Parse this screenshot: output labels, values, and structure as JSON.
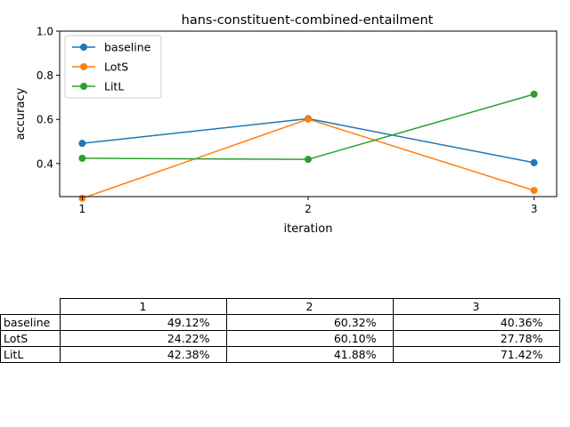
{
  "chart_data": {
    "type": "line",
    "title": "hans-constituent-combined-entailment",
    "xlabel": "iteration",
    "ylabel": "accuracy",
    "x": [
      1,
      2,
      3
    ],
    "x_ticks": [
      "1",
      "2",
      "3"
    ],
    "y_ticks": [
      "0.4",
      "0.6",
      "0.8",
      "1.0"
    ],
    "ylim": [
      0.25,
      1.0
    ],
    "grid": false,
    "legend_position": "upper-left",
    "series": [
      {
        "name": "baseline",
        "color": "#1f77b4",
        "values": [
          0.4912,
          0.6032,
          0.4036
        ]
      },
      {
        "name": "LotS",
        "color": "#ff7f0e",
        "values": [
          0.2422,
          0.601,
          0.2778
        ]
      },
      {
        "name": "LitL",
        "color": "#2ca02c",
        "values": [
          0.4238,
          0.4188,
          0.7142
        ]
      }
    ]
  },
  "table": {
    "columns": [
      "1",
      "2",
      "3"
    ],
    "rows": [
      {
        "label": "baseline",
        "cells": [
          "49.12%",
          "60.32%",
          "40.36%"
        ]
      },
      {
        "label": "LotS",
        "cells": [
          "24.22%",
          "60.10%",
          "27.78%"
        ]
      },
      {
        "label": "LitL",
        "cells": [
          "42.38%",
          "41.88%",
          "71.42%"
        ]
      }
    ]
  }
}
